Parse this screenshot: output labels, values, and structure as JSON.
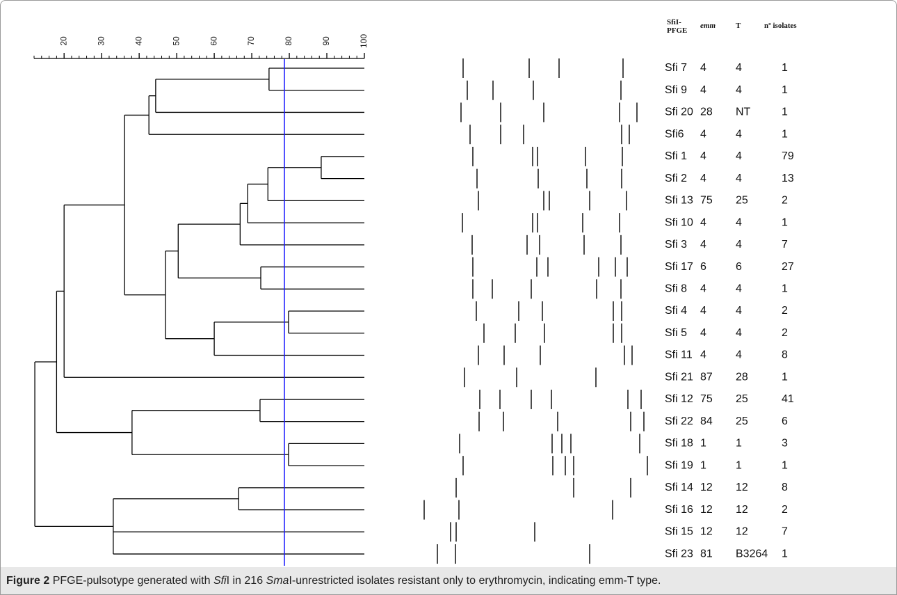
{
  "figure": {
    "scale": {
      "xlim": [
        12,
        100
      ],
      "xticks": [
        20,
        30,
        40,
        50,
        60,
        70,
        80,
        90,
        100
      ]
    },
    "cutoff": 78.7,
    "headers": {
      "pulsotype": "SfiI-PFGE",
      "emm": "emm",
      "T": "T",
      "isolates": "nº isolates"
    },
    "dendrogram": {
      "similarity": 12.2,
      "children": [
        {
          "similarity": 18,
          "children": [
            {
              "similarity": 20,
              "children": [
                {
                  "similarity": 36.1,
                  "children": [
                    {
                      "similarity": 42.6,
                      "children": [
                        {
                          "similarity": 44.4,
                          "children": [
                            {
                              "similarity": 74.6,
                              "children": [
                                {
                                  "pulsotype": "Sfi 7",
                                  "emm": 4,
                                  "T": 4,
                                  "isolates": 1
                                },
                                {
                                  "pulsotype": "Sfi 9",
                                  "emm": 4,
                                  "T": 4,
                                  "isolates": 1
                                }
                              ]
                            },
                            {
                              "pulsotype": "Sfi 20",
                              "emm": 28,
                              "T": "NT",
                              "isolates": 1
                            }
                          ]
                        },
                        {
                          "pulsotype": "Sfi6",
                          "emm": 4,
                          "T": 4,
                          "isolates": 1
                        }
                      ]
                    },
                    {
                      "similarity": 47,
                      "children": [
                        {
                          "similarity": 50.4,
                          "children": [
                            {
                              "similarity": 66.9,
                              "children": [
                                {
                                  "similarity": 68.9,
                                  "children": [
                                    {
                                      "similarity": 74.3,
                                      "children": [
                                        {
                                          "similarity": 88.5,
                                          "children": [
                                            {
                                              "pulsotype": "Sfi 1",
                                              "emm": 4,
                                              "T": 4,
                                              "isolates": 79
                                            },
                                            {
                                              "pulsotype": "Sfi 2",
                                              "emm": 4,
                                              "T": 4,
                                              "isolates": 13
                                            }
                                          ]
                                        },
                                        {
                                          "pulsotype": "Sfi 13",
                                          "emm": 75,
                                          "T": 25,
                                          "isolates": 2
                                        }
                                      ]
                                    },
                                    {
                                      "pulsotype": "Sfi 10",
                                      "emm": 4,
                                      "T": 4,
                                      "isolates": 1
                                    }
                                  ]
                                },
                                {
                                  "pulsotype": "Sfi 3",
                                  "emm": 4,
                                  "T": 4,
                                  "isolates": 7
                                }
                              ]
                            },
                            {
                              "similarity": 72.4,
                              "children": [
                                {
                                  "pulsotype": "Sfi 17",
                                  "emm": 6,
                                  "T": 6,
                                  "isolates": 27
                                },
                                {
                                  "pulsotype": "Sfi 8",
                                  "emm": 4,
                                  "T": 4,
                                  "isolates": 1
                                }
                              ]
                            }
                          ]
                        },
                        {
                          "similarity": 60,
                          "children": [
                            {
                              "similarity": 79.8,
                              "children": [
                                {
                                  "pulsotype": "Sfi 4",
                                  "emm": 4,
                                  "T": 4,
                                  "isolates": 2
                                },
                                {
                                  "pulsotype": "Sfi 5",
                                  "emm": 4,
                                  "T": 4,
                                  "isolates": 2
                                }
                              ]
                            },
                            {
                              "pulsotype": "Sfi 11",
                              "emm": 4,
                              "T": 4,
                              "isolates": 8
                            }
                          ]
                        }
                      ]
                    }
                  ]
                },
                {
                  "pulsotype": "Sfi 21",
                  "emm": 87,
                  "T": 28,
                  "isolates": 1
                }
              ]
            },
            {
              "similarity": 38.1,
              "children": [
                {
                  "similarity": 72.2,
                  "children": [
                    {
                      "pulsotype": "Sfi 12",
                      "emm": 75,
                      "T": 25,
                      "isolates": 41
                    },
                    {
                      "pulsotype": "Sfi 22",
                      "emm": 84,
                      "T": 25,
                      "isolates": 6
                    }
                  ]
                },
                {
                  "similarity": 79.8,
                  "children": [
                    {
                      "pulsotype": "Sfi 18",
                      "emm": 1,
                      "T": 1,
                      "isolates": 3
                    },
                    {
                      "pulsotype": "Sfi 19",
                      "emm": 1,
                      "T": 1,
                      "isolates": 1
                    }
                  ]
                }
              ]
            }
          ]
        },
        {
          "similarity": 33.1,
          "children": [
            {
              "similarity": 66.5,
              "children": [
                {
                  "pulsotype": "Sfi 14",
                  "emm": 12,
                  "T": 12,
                  "isolates": 8
                },
                {
                  "pulsotype": "Sfi 16",
                  "emm": 12,
                  "T": 12,
                  "isolates": 2
                }
              ]
            },
            {
              "pulsotype": "Sfi 15",
              "emm": 12,
              "T": 12,
              "isolates": 7
            },
            {
              "pulsotype": "Sfi 23",
              "emm": 81,
              "T": "B3264",
              "isolates": 1
            }
          ]
        }
      ]
    },
    "caption": [
      "Figure 2",
      "PFGE-pulsotype generated with",
      "Sfi",
      "I in 216",
      "Sma",
      "I-unrestricted isolates resistant only to erythromycin, indicating emm-T type."
    ]
  }
}
